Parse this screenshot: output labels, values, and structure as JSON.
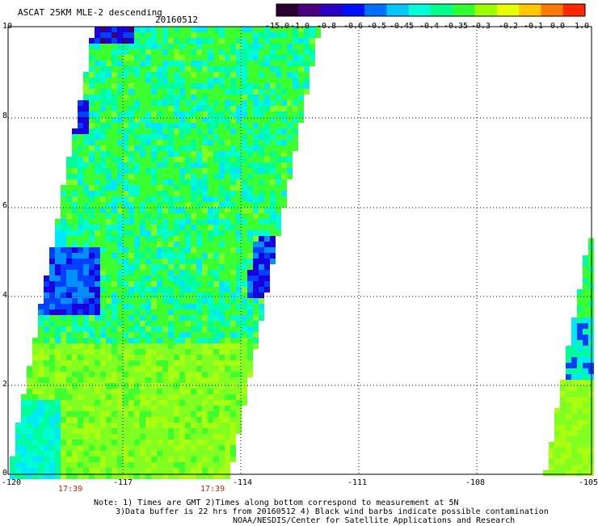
{
  "header": {
    "product": "ASCAT 25KM MLE-2 descending",
    "date": "20160512"
  },
  "colorbar": {
    "labels": [
      "-15.0",
      "-1.0",
      "-0.8",
      "-0.6",
      "-0.5",
      "-0.45",
      "-0.4",
      "-0.35",
      "-0.3",
      "-0.2",
      "-0.1",
      "0.0",
      "1.0"
    ],
    "colors": [
      "#2a0030",
      "#4b0082",
      "#2a00c8",
      "#0010ff",
      "#0070ff",
      "#00c8ff",
      "#00ffd8",
      "#00ff8c",
      "#30ff30",
      "#9cff00",
      "#e8ff00",
      "#ffc800",
      "#ff7800",
      "#ff2800"
    ]
  },
  "map": {
    "y_axis_labels": [
      "10",
      "8",
      "6",
      "4",
      "2",
      "0"
    ],
    "x_axis_labels": [
      "-120",
      "-117",
      "-114",
      "-111",
      "-108",
      "-105"
    ],
    "time_labels": [
      "17:39",
      "17:39"
    ],
    "swath_colors": {
      "dark_purple": "#3a0070",
      "deep_blue": "#1a00e0",
      "blue": "#0040ff",
      "mid_blue": "#0090ff",
      "cyan": "#00e8ff",
      "aqua": "#00ffd0",
      "green_cyan": "#00ff9a",
      "green": "#3cff30",
      "light_green": "#80ff20",
      "yellow_green": "#a8ff10"
    }
  },
  "footer": {
    "line1": "Note: 1) Times are GMT 2)Times along bottom correspond to measurement at 5N",
    "line2": "3)Data buffer is 22 hrs from 20160512 4) Black wind barbs indicate possible contamination",
    "line3": "NOAA/NESDIS/Center for Satellite Applications and Research"
  }
}
